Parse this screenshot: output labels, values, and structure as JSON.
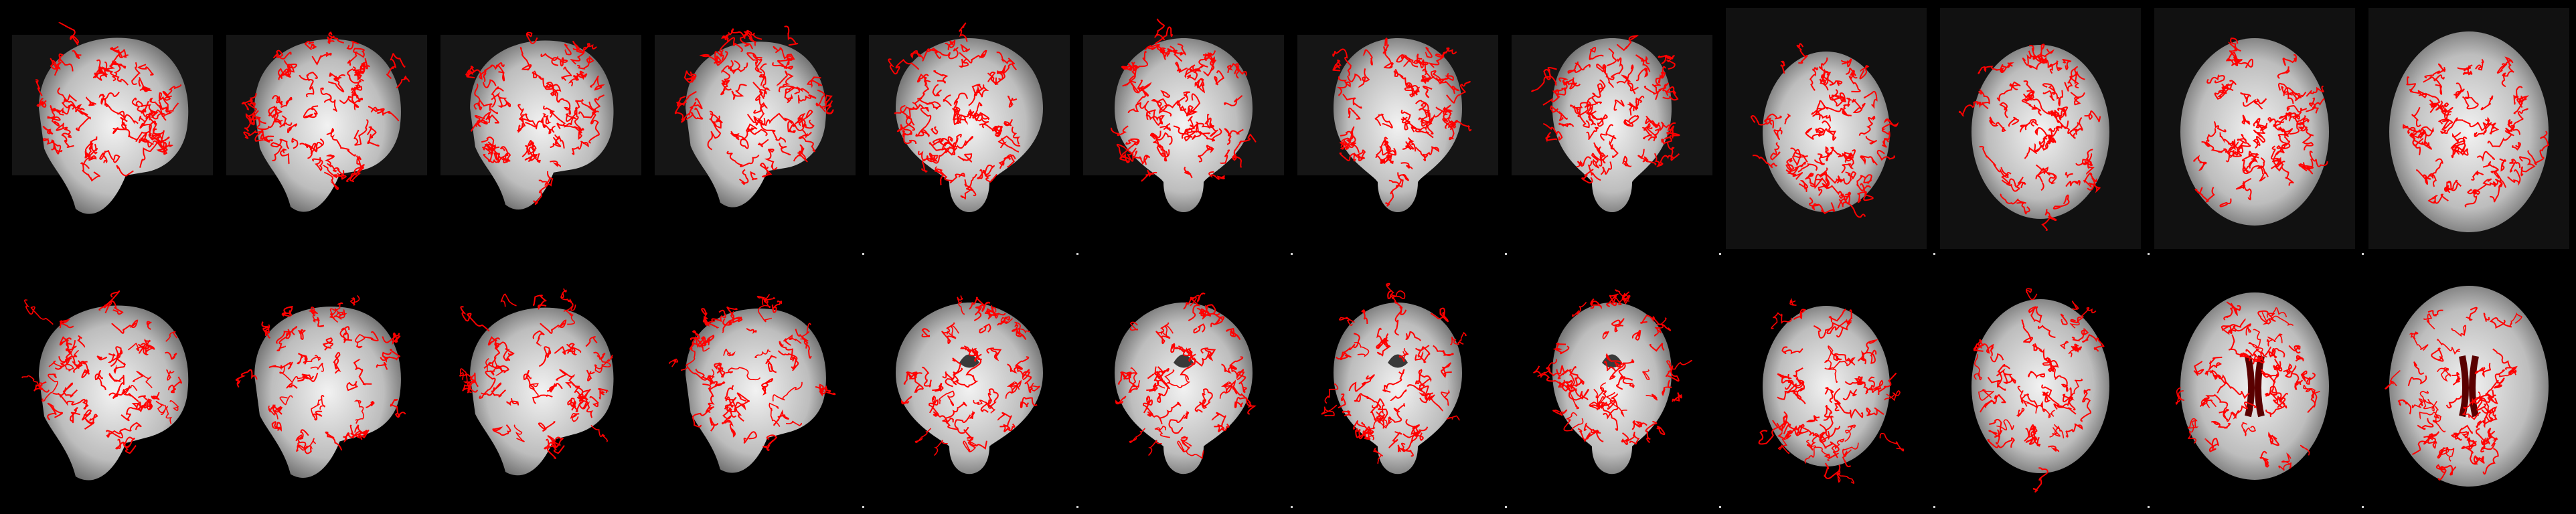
{
  "figure": {
    "kind": "MRI brain registration quality-control montage",
    "overlay_color": "#ff0000",
    "background_color": "#000000",
    "tissue_color": "#e6e6e6"
  },
  "rows": [
    {
      "id": "top",
      "panels": [
        {
          "view": "sagittal"
        },
        {
          "view": "sagittal"
        },
        {
          "view": "sagittal"
        },
        {
          "view": "sagittal"
        },
        {
          "view": "coronal"
        },
        {
          "view": "coronal"
        },
        {
          "view": "coronal"
        },
        {
          "view": "coronal"
        },
        {
          "view": "axial"
        },
        {
          "view": "axial"
        },
        {
          "view": "axial"
        },
        {
          "view": "axial"
        }
      ]
    },
    {
      "id": "bottom",
      "panels": [
        {
          "view": "sagittal"
        },
        {
          "view": "sagittal"
        },
        {
          "view": "sagittal"
        },
        {
          "view": "sagittal"
        },
        {
          "view": "coronal"
        },
        {
          "view": "coronal"
        },
        {
          "view": "coronal"
        },
        {
          "view": "coronal"
        },
        {
          "view": "axial"
        },
        {
          "view": "axial"
        },
        {
          "view": "axial"
        },
        {
          "view": "axial"
        }
      ]
    }
  ]
}
